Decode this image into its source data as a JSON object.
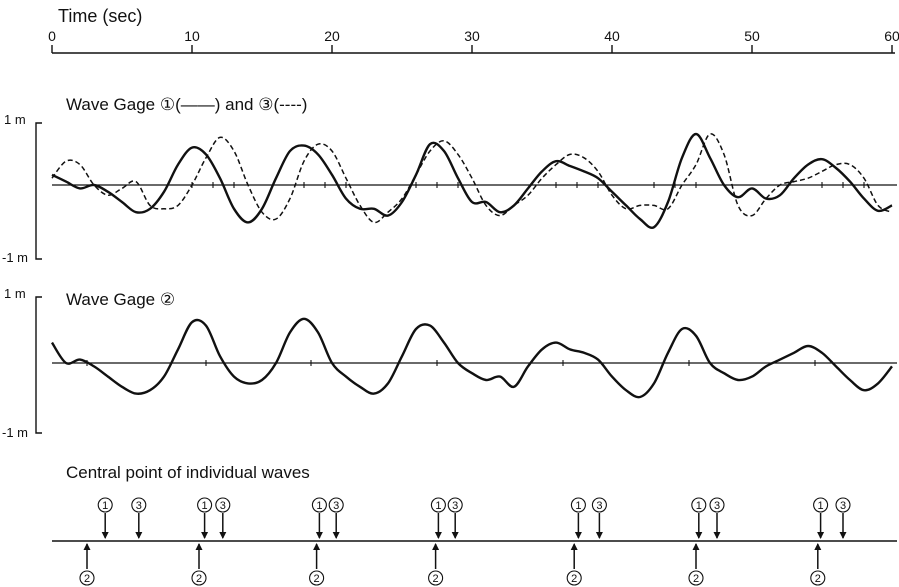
{
  "chart_data": [
    {
      "type": "line",
      "title": "Wave Gage ①(——) and ③(----)",
      "xlabel": "Time (sec)",
      "x_ticks": [
        "0",
        "10",
        "20",
        "30",
        "40",
        "50",
        "60"
      ],
      "xlim": [
        0,
        60
      ],
      "ylim": [
        -1,
        1
      ],
      "y_top_label": "1 m",
      "y_bottom_label": "-1 m",
      "series": [
        {
          "name": "①",
          "style": "solid",
          "x": [
            0,
            1,
            2,
            3,
            4,
            5,
            6,
            7,
            8,
            9,
            10,
            11,
            12,
            13,
            14,
            15,
            16,
            17,
            18,
            19,
            20,
            21,
            22,
            23,
            24,
            25,
            26,
            27,
            28,
            29,
            30,
            31,
            32,
            33,
            34,
            35,
            36,
            37,
            38,
            39,
            40,
            41,
            42,
            43,
            44,
            45,
            46,
            47,
            48,
            49,
            50,
            51,
            52,
            53,
            54,
            55,
            56,
            57,
            58,
            59,
            60
          ],
          "y": [
            0.15,
            0.05,
            -0.05,
            0.0,
            -0.1,
            -0.25,
            -0.4,
            -0.35,
            -0.1,
            0.3,
            0.55,
            0.45,
            0.1,
            -0.35,
            -0.55,
            -0.35,
            0.1,
            0.5,
            0.58,
            0.45,
            0.15,
            -0.2,
            -0.35,
            -0.35,
            -0.45,
            -0.25,
            0.15,
            0.6,
            0.5,
            0.1,
            -0.25,
            -0.25,
            -0.4,
            -0.3,
            -0.05,
            0.2,
            0.35,
            0.28,
            0.2,
            0.1,
            -0.1,
            -0.3,
            -0.5,
            -0.62,
            -0.25,
            0.4,
            0.75,
            0.4,
            0.0,
            -0.18,
            -0.05,
            -0.2,
            -0.15,
            0.1,
            0.3,
            0.38,
            0.25,
            0.05,
            -0.2,
            -0.38,
            -0.3
          ]
        },
        {
          "name": "③",
          "style": "dashed",
          "x": [
            0,
            1,
            2,
            3,
            4,
            5,
            6,
            7,
            8,
            9,
            10,
            11,
            12,
            13,
            14,
            15,
            16,
            17,
            18,
            19,
            20,
            21,
            22,
            23,
            24,
            25,
            26,
            27,
            28,
            29,
            30,
            31,
            32,
            33,
            34,
            35,
            36,
            37,
            38,
            39,
            40,
            41,
            42,
            43,
            44,
            45,
            46,
            47,
            48,
            49,
            50,
            51,
            52,
            53,
            54,
            55,
            56,
            57,
            58,
            59,
            60
          ],
          "y": [
            0.1,
            0.35,
            0.3,
            0.0,
            -0.15,
            -0.05,
            0.05,
            -0.3,
            -0.35,
            -0.3,
            0.0,
            0.4,
            0.7,
            0.5,
            0.0,
            -0.4,
            -0.5,
            -0.2,
            0.35,
            0.6,
            0.5,
            0.1,
            -0.3,
            -0.55,
            -0.4,
            -0.2,
            0.15,
            0.5,
            0.65,
            0.45,
            0.1,
            -0.3,
            -0.45,
            -0.3,
            -0.15,
            0.1,
            0.3,
            0.45,
            0.4,
            0.2,
            -0.15,
            -0.35,
            -0.3,
            -0.3,
            -0.35,
            0.0,
            0.3,
            0.75,
            0.45,
            -0.3,
            -0.45,
            -0.2,
            0.0,
            0.05,
            0.1,
            0.2,
            0.3,
            0.3,
            0.1,
            -0.3,
            -0.4
          ]
        }
      ],
      "zero_crossing_marks_x": [
        10,
        11.5,
        13,
        18,
        19.5,
        21,
        26,
        27.5,
        29,
        36,
        37.5,
        39,
        43,
        44.5,
        46,
        55,
        56.5,
        58
      ]
    },
    {
      "type": "line",
      "title": "Wave Gage ②",
      "xlim": [
        0,
        60
      ],
      "ylim": [
        -1,
        1
      ],
      "y_top_label": "1 m",
      "y_bottom_label": "-1 m",
      "series": [
        {
          "name": "②",
          "style": "solid",
          "x": [
            0,
            1,
            2,
            3,
            4,
            5,
            6,
            7,
            8,
            9,
            10,
            11,
            12,
            13,
            14,
            15,
            16,
            17,
            18,
            19,
            20,
            21,
            22,
            23,
            24,
            25,
            26,
            27,
            28,
            29,
            30,
            31,
            32,
            33,
            34,
            35,
            36,
            37,
            38,
            39,
            40,
            41,
            42,
            43,
            44,
            45,
            46,
            47,
            48,
            49,
            50,
            51,
            52,
            53,
            54,
            55,
            56,
            57,
            58,
            59,
            60
          ],
          "y": [
            0.3,
            0.0,
            0.05,
            -0.05,
            -0.2,
            -0.35,
            -0.45,
            -0.4,
            -0.2,
            0.2,
            0.6,
            0.55,
            0.1,
            -0.2,
            -0.3,
            -0.25,
            0.0,
            0.45,
            0.65,
            0.45,
            0.0,
            -0.2,
            -0.35,
            -0.45,
            -0.3,
            0.1,
            0.5,
            0.55,
            0.3,
            0.0,
            -0.15,
            -0.25,
            -0.2,
            -0.35,
            -0.05,
            0.2,
            0.3,
            0.2,
            0.15,
            0.05,
            -0.2,
            -0.4,
            -0.5,
            -0.3,
            0.15,
            0.5,
            0.4,
            0.0,
            -0.15,
            -0.25,
            -0.2,
            -0.05,
            0.05,
            0.15,
            0.25,
            0.15,
            -0.05,
            -0.25,
            -0.4,
            -0.3,
            -0.05
          ]
        }
      ],
      "zero_crossing_marks_x": [
        2.5,
        11,
        18.5,
        27.5,
        36.5,
        45.5,
        54.5
      ]
    }
  ],
  "central_points": {
    "title": "Central point of individual waves",
    "groups": [
      {
        "up_x": 2.5,
        "up_label": "②",
        "down": [
          {
            "x": 3.8,
            "label": "①"
          },
          {
            "x": 6.2,
            "label": "③"
          }
        ]
      },
      {
        "up_x": 10.5,
        "up_label": "②",
        "down": [
          {
            "x": 10.9,
            "label": "①"
          },
          {
            "x": 12.2,
            "label": "③"
          }
        ]
      },
      {
        "up_x": 18.9,
        "up_label": "②",
        "down": [
          {
            "x": 19.1,
            "label": "①"
          },
          {
            "x": 20.3,
            "label": "③"
          }
        ]
      },
      {
        "up_x": 27.4,
        "up_label": "②",
        "down": [
          {
            "x": 27.6,
            "label": "①"
          },
          {
            "x": 28.8,
            "label": "③"
          }
        ]
      },
      {
        "up_x": 37.3,
        "up_label": "②",
        "down": [
          {
            "x": 37.6,
            "label": "①"
          },
          {
            "x": 39.1,
            "label": "③"
          }
        ]
      },
      {
        "up_x": 46.0,
        "up_label": "②",
        "down": [
          {
            "x": 46.2,
            "label": "①"
          },
          {
            "x": 47.5,
            "label": "③"
          }
        ]
      },
      {
        "up_x": 54.7,
        "up_label": "②",
        "down": [
          {
            "x": 54.9,
            "label": "①"
          },
          {
            "x": 56.5,
            "label": "③"
          }
        ]
      }
    ]
  },
  "colors": {
    "ink": "#111111",
    "background": "#ffffff"
  }
}
